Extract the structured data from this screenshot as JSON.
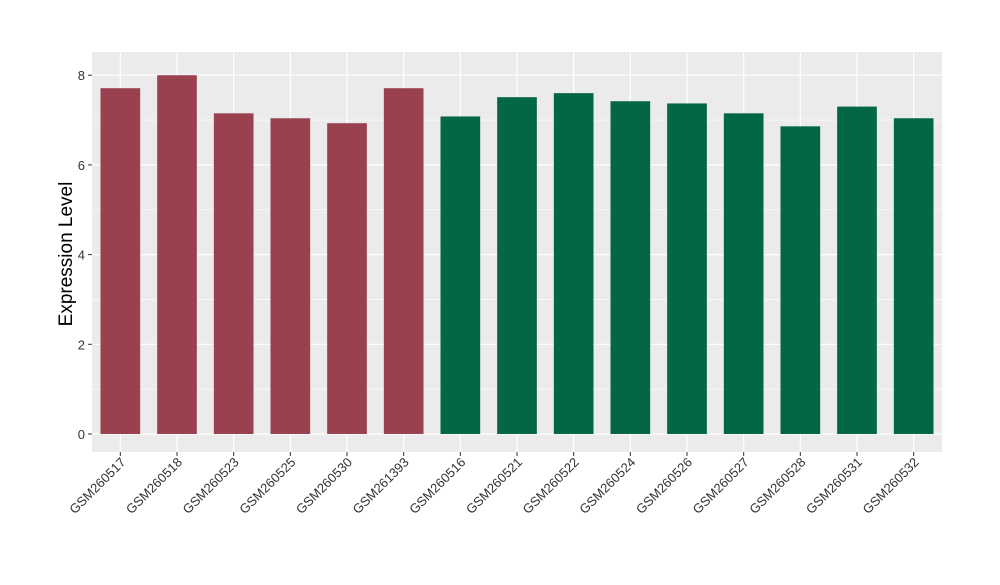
{
  "chart_data": {
    "type": "bar",
    "title": "",
    "xlabel": "",
    "ylabel": "Expression Level",
    "ylim": [
      -0.35,
      8.5
    ],
    "yticks": [
      0,
      2,
      4,
      6,
      8
    ],
    "grid": true,
    "categories": [
      "GSM260517",
      "GSM260518",
      "GSM260523",
      "GSM260525",
      "GSM260530",
      "GSM261393",
      "GSM260516",
      "GSM260521",
      "GSM260522",
      "GSM260524",
      "GSM260526",
      "GSM260527",
      "GSM260528",
      "GSM260531",
      "GSM260532"
    ],
    "values": [
      7.71,
      8.0,
      7.15,
      7.04,
      6.93,
      7.71,
      7.08,
      7.51,
      7.6,
      7.42,
      7.37,
      7.15,
      6.86,
      7.3,
      7.04
    ],
    "groups": [
      "a",
      "a",
      "a",
      "a",
      "a",
      "a",
      "b",
      "b",
      "b",
      "b",
      "b",
      "b",
      "b",
      "b",
      "b"
    ],
    "colors": {
      "a": "#9a4150",
      "b": "#036645"
    },
    "panel_background": "#ebebeb"
  }
}
